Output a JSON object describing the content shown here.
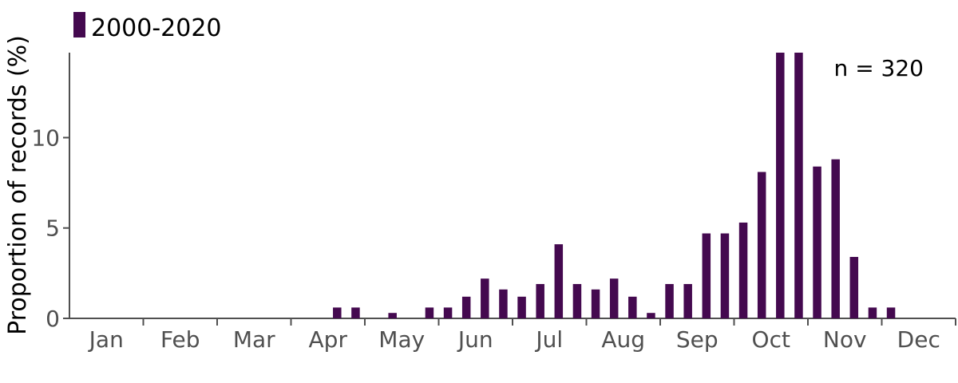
{
  "chart_data": {
    "type": "bar",
    "ylabel": "Proportion of records (%)",
    "ylim": [
      0,
      14.7
    ],
    "yticks": [
      0,
      5,
      10
    ],
    "months": [
      "Jan",
      "Feb",
      "Mar",
      "Apr",
      "May",
      "Jun",
      "Jul",
      "Aug",
      "Sep",
      "Oct",
      "Nov",
      "Dec"
    ],
    "bins_per_month": 4,
    "series": [
      {
        "name": "2000-2020",
        "color": "#44094f",
        "values": [
          0,
          0,
          0,
          0,
          0,
          0,
          0,
          0,
          0,
          0,
          0,
          0,
          0,
          0,
          0.6,
          0.6,
          0,
          0.3,
          0,
          0.6,
          0.6,
          1.2,
          2.2,
          1.6,
          1.2,
          1.9,
          4.1,
          1.9,
          1.6,
          2.2,
          1.2,
          0.3,
          1.9,
          1.9,
          4.7,
          4.7,
          5.3,
          8.1,
          14.7,
          14.7,
          8.4,
          8.8,
          3.4,
          0.6,
          0.6,
          0,
          0,
          0
        ]
      }
    ],
    "legend": {
      "label": "2000-2020",
      "position": "top-left"
    },
    "annotation": "n = 320",
    "grid": false
  }
}
